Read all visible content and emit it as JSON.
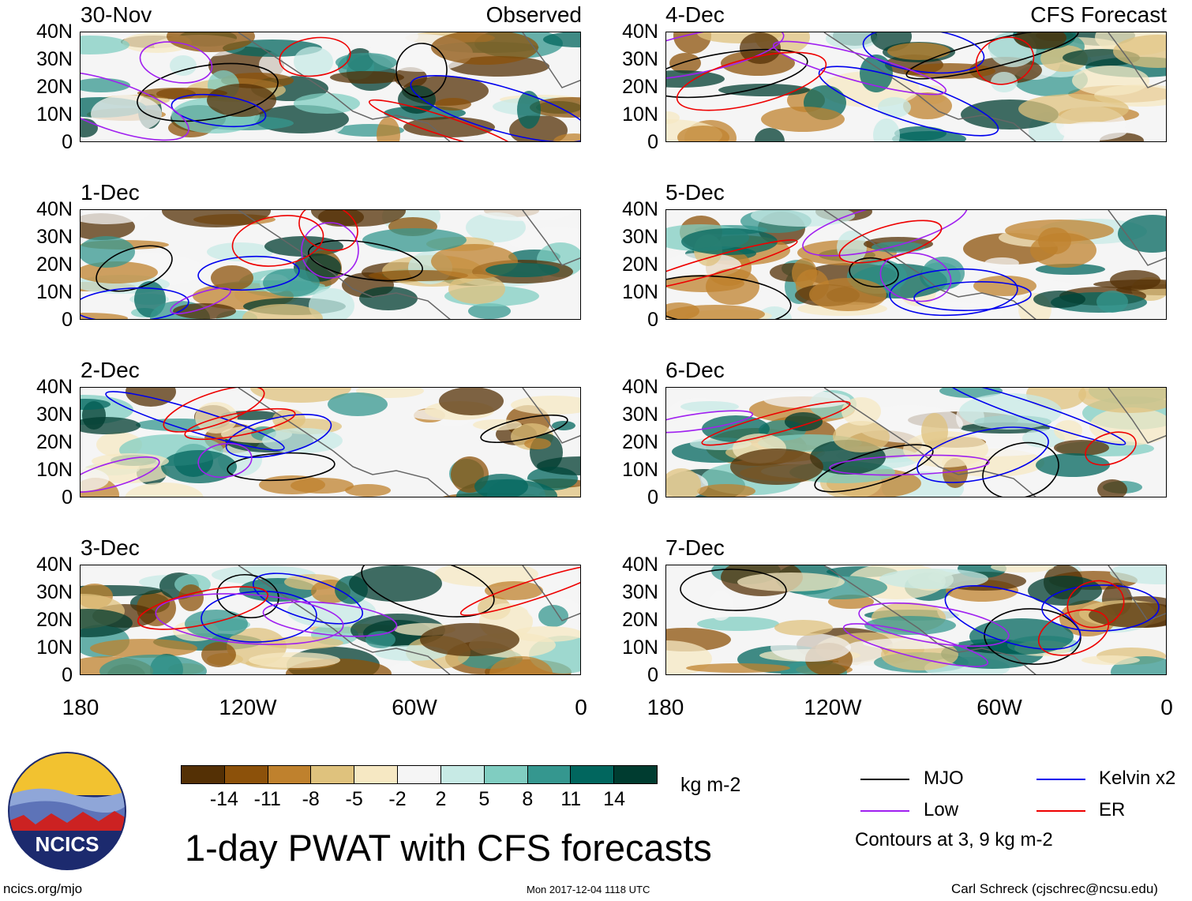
{
  "header_left_tag": "Observed",
  "header_right_tag": "CFS Forecast",
  "panels": [
    {
      "date": "30-Nov",
      "column": "observed"
    },
    {
      "date": "1-Dec",
      "column": "observed"
    },
    {
      "date": "2-Dec",
      "column": "observed"
    },
    {
      "date": "3-Dec",
      "column": "observed"
    },
    {
      "date": "4-Dec",
      "column": "forecast"
    },
    {
      "date": "5-Dec",
      "column": "forecast"
    },
    {
      "date": "6-Dec",
      "column": "forecast"
    },
    {
      "date": "7-Dec",
      "column": "forecast"
    }
  ],
  "lat_labels": [
    "40N",
    "30N",
    "20N",
    "10N",
    "0"
  ],
  "lon_labels": [
    "180",
    "120W",
    "60W",
    "0"
  ],
  "colorbar": {
    "labels": [
      "-14",
      "-11",
      "-8",
      "-5",
      "-2",
      "2",
      "5",
      "8",
      "11",
      "14"
    ],
    "colors": [
      "#543005",
      "#8c510a",
      "#bf812d",
      "#dfc27d",
      "#f6e8c3",
      "#f5f5f5",
      "#c7eae5",
      "#80cdc1",
      "#35978f",
      "#01665e",
      "#003c30"
    ],
    "units": "kg m-2"
  },
  "title": "1-day PWAT with CFS forecasts",
  "legend": {
    "items": [
      {
        "label": "MJO",
        "color": "#000000"
      },
      {
        "label": "Kelvin x2",
        "color": "#0000ee"
      },
      {
        "label": "Low",
        "color": "#a020f0"
      },
      {
        "label": "ER",
        "color": "#ee0000"
      }
    ],
    "note": "Contours at 3, 9 kg m-2"
  },
  "logo_text": "NCICS",
  "footer": {
    "left": "ncics.org/mjo",
    "center": "Mon 2017-12-04 1118 UTC",
    "right": "Carl Schreck (cjschrec@ncsu.edu)"
  }
}
